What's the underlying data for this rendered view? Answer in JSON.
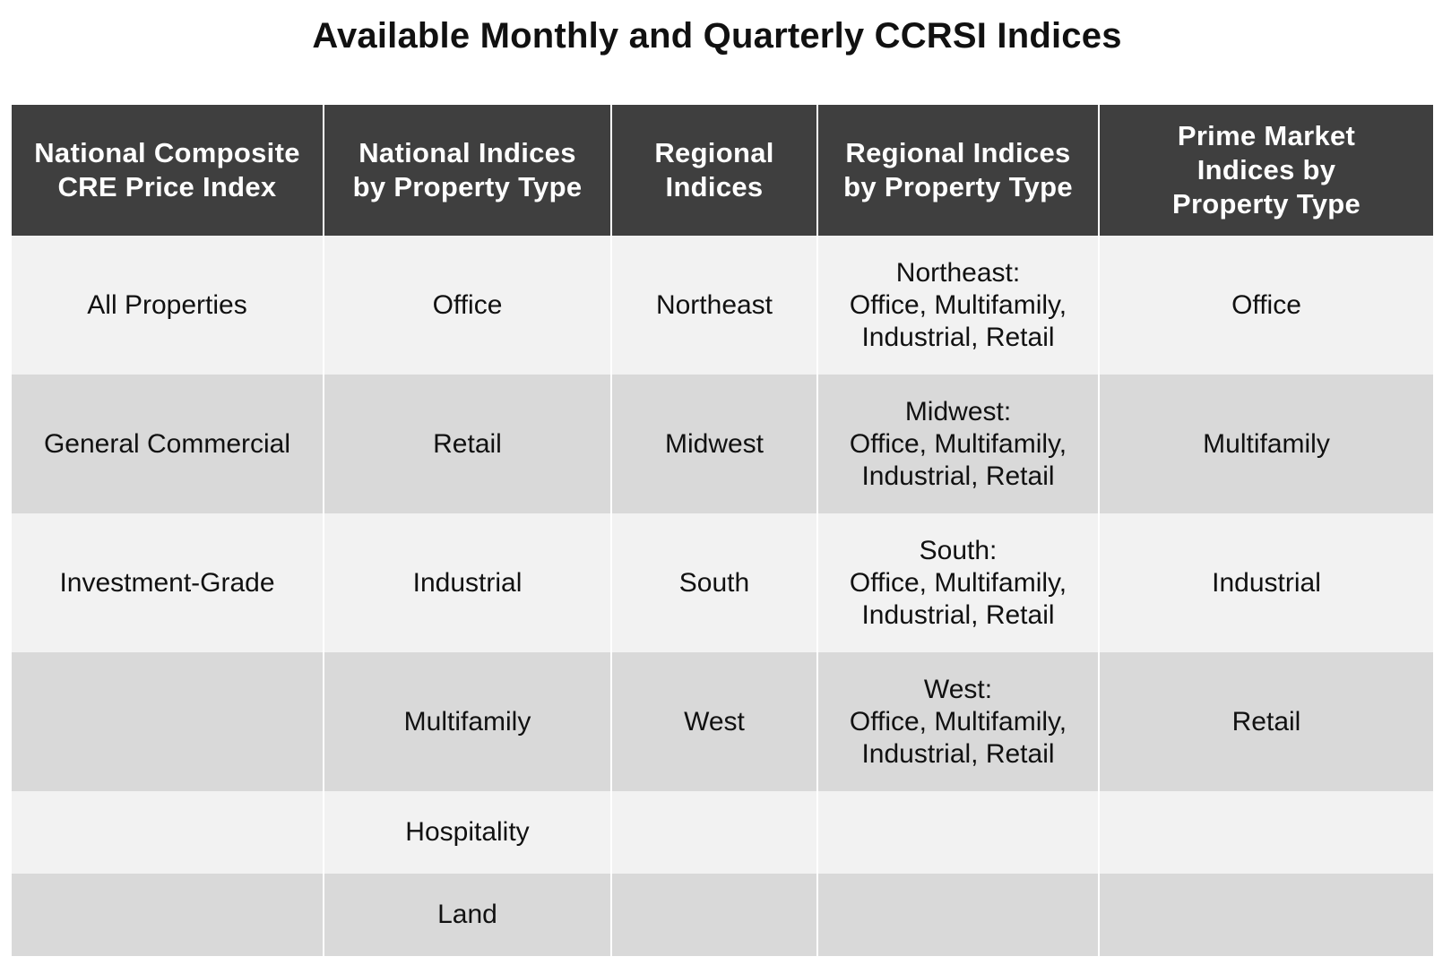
{
  "title": "Available Monthly and Quarterly CCRSI Indices",
  "table": {
    "headers": [
      [
        "National Composite",
        "CRE Price Index"
      ],
      [
        "National Indices",
        "by Property Type"
      ],
      [
        "Regional",
        "Indices"
      ],
      [
        "Regional Indices",
        "by Property Type"
      ],
      [
        "Prime Market",
        "Indices by",
        "Property Type"
      ]
    ],
    "rows": [
      [
        [
          "All Properties"
        ],
        [
          "Office"
        ],
        [
          "Northeast"
        ],
        [
          "Northeast:",
          "Office, Multifamily,",
          "Industrial, Retail"
        ],
        [
          "Office"
        ]
      ],
      [
        [
          "General Commercial"
        ],
        [
          "Retail"
        ],
        [
          "Midwest"
        ],
        [
          "Midwest:",
          "Office, Multifamily,",
          "Industrial, Retail"
        ],
        [
          "Multifamily"
        ]
      ],
      [
        [
          "Investment-Grade"
        ],
        [
          "Industrial"
        ],
        [
          "South"
        ],
        [
          "South:",
          "Office, Multifamily,",
          "Industrial, Retail"
        ],
        [
          "Industrial"
        ]
      ],
      [
        [],
        [
          "Multifamily"
        ],
        [
          "West"
        ],
        [
          "West:",
          "Office, Multifamily,",
          "Industrial, Retail"
        ],
        [
          "Retail"
        ]
      ],
      [
        [],
        [
          "Hospitality"
        ],
        [],
        [],
        []
      ],
      [
        [],
        [
          "Land"
        ],
        [],
        [],
        []
      ]
    ]
  }
}
